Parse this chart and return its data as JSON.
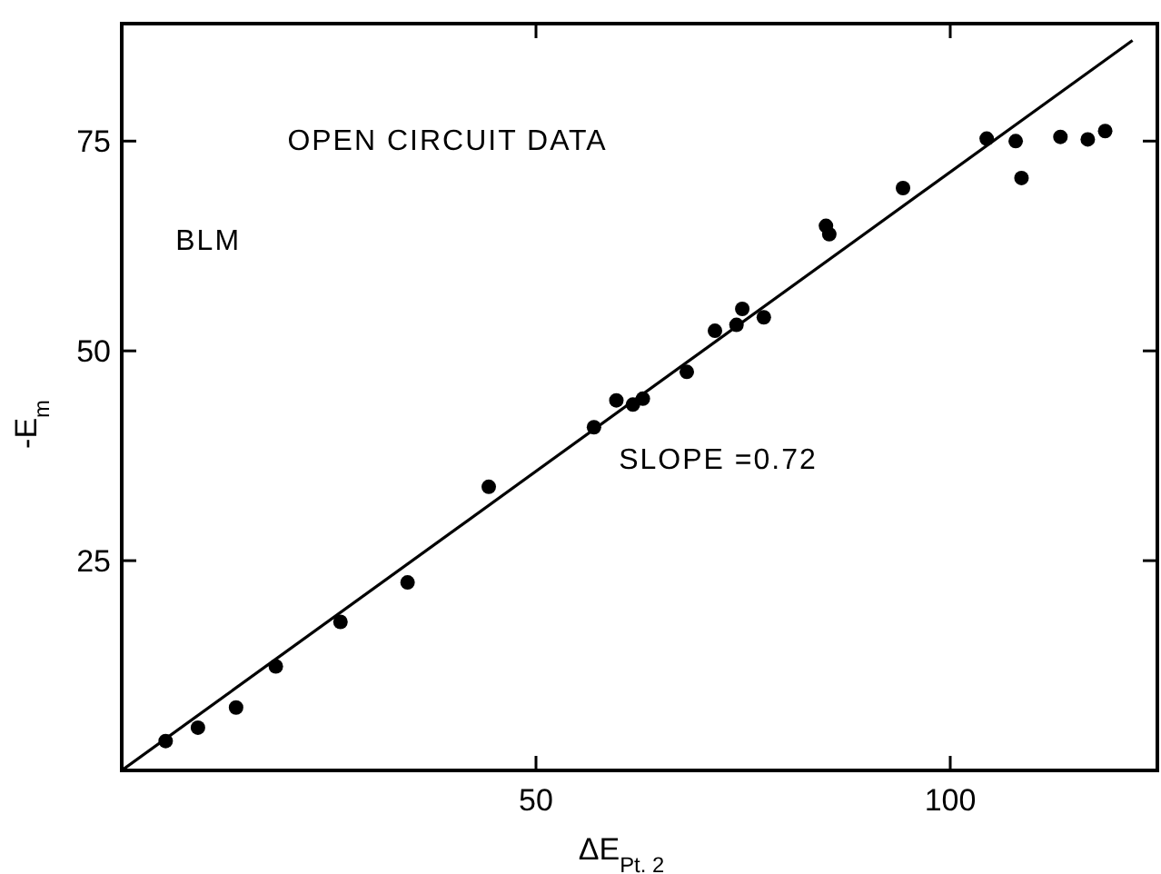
{
  "chart_data": {
    "type": "scatter",
    "xlabel": "ΔE$_{Pt. 2}$",
    "ylabel": "-E$_{m}$",
    "xlim": [
      0,
      125
    ],
    "ylim": [
      0,
      89
    ],
    "xticks": [
      50,
      100
    ],
    "yticks": [
      25,
      50,
      75
    ],
    "grid": false,
    "marker": "circle",
    "annotations": [
      "OPEN CIRCUIT DATA",
      "BLM",
      "SLOPE =0.72"
    ],
    "series": [
      {
        "type": "scatter",
        "color": "#000000",
        "x": [
          5.3,
          9.2,
          13.8,
          18.6,
          26.4,
          34.5,
          44.3,
          57.0,
          59.7,
          61.7,
          62.9,
          68.2,
          71.6,
          74.2,
          74.9,
          77.5,
          85.0,
          85.4,
          94.3,
          104.4,
          107.9,
          108.6,
          113.3,
          116.6,
          118.7
        ],
        "values": [
          3.5,
          5.1,
          7.5,
          12.4,
          17.7,
          22.4,
          33.8,
          40.9,
          44.1,
          43.6,
          44.3,
          47.5,
          52.4,
          53.1,
          55.0,
          54.0,
          64.9,
          63.9,
          69.4,
          75.3,
          75.0,
          70.6,
          75.5,
          75.2,
          76.2
        ]
      },
      {
        "type": "line",
        "color": "#000000",
        "line_style": "solid",
        "marker": "none",
        "x": [
          0,
          122
        ],
        "values": [
          0,
          87
        ]
      }
    ]
  }
}
